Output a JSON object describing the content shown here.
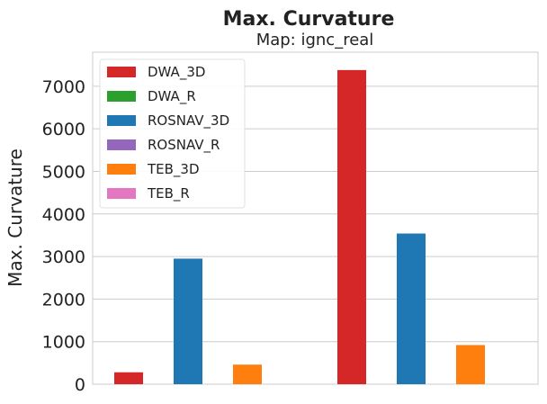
{
  "chart_data": {
    "type": "bar",
    "title": "Max. Curvature",
    "subtitle": "Map: ignc_real",
    "xlabel": "",
    "ylabel": "Max. Curvature",
    "ylim": [
      0,
      7800
    ],
    "yticks": [
      0,
      1000,
      2000,
      3000,
      4000,
      5000,
      6000,
      7000
    ],
    "grid": true,
    "legend_position": "top-left",
    "groups": 2,
    "series": [
      {
        "name": "DWA_3D",
        "color": "#d62728",
        "values": [
          280,
          7380
        ]
      },
      {
        "name": "DWA_R",
        "color": "#2ca02c",
        "values": [
          0,
          0
        ]
      },
      {
        "name": "ROSNAV_3D",
        "color": "#1f77b4",
        "values": [
          2950,
          3540
        ]
      },
      {
        "name": "ROSNAV_R",
        "color": "#9467bd",
        "values": [
          0,
          0
        ]
      },
      {
        "name": "TEB_3D",
        "color": "#ff7f0e",
        "values": [
          460,
          920
        ]
      },
      {
        "name": "TEB_R",
        "color": "#e377c2",
        "values": [
          0,
          0
        ]
      }
    ]
  }
}
